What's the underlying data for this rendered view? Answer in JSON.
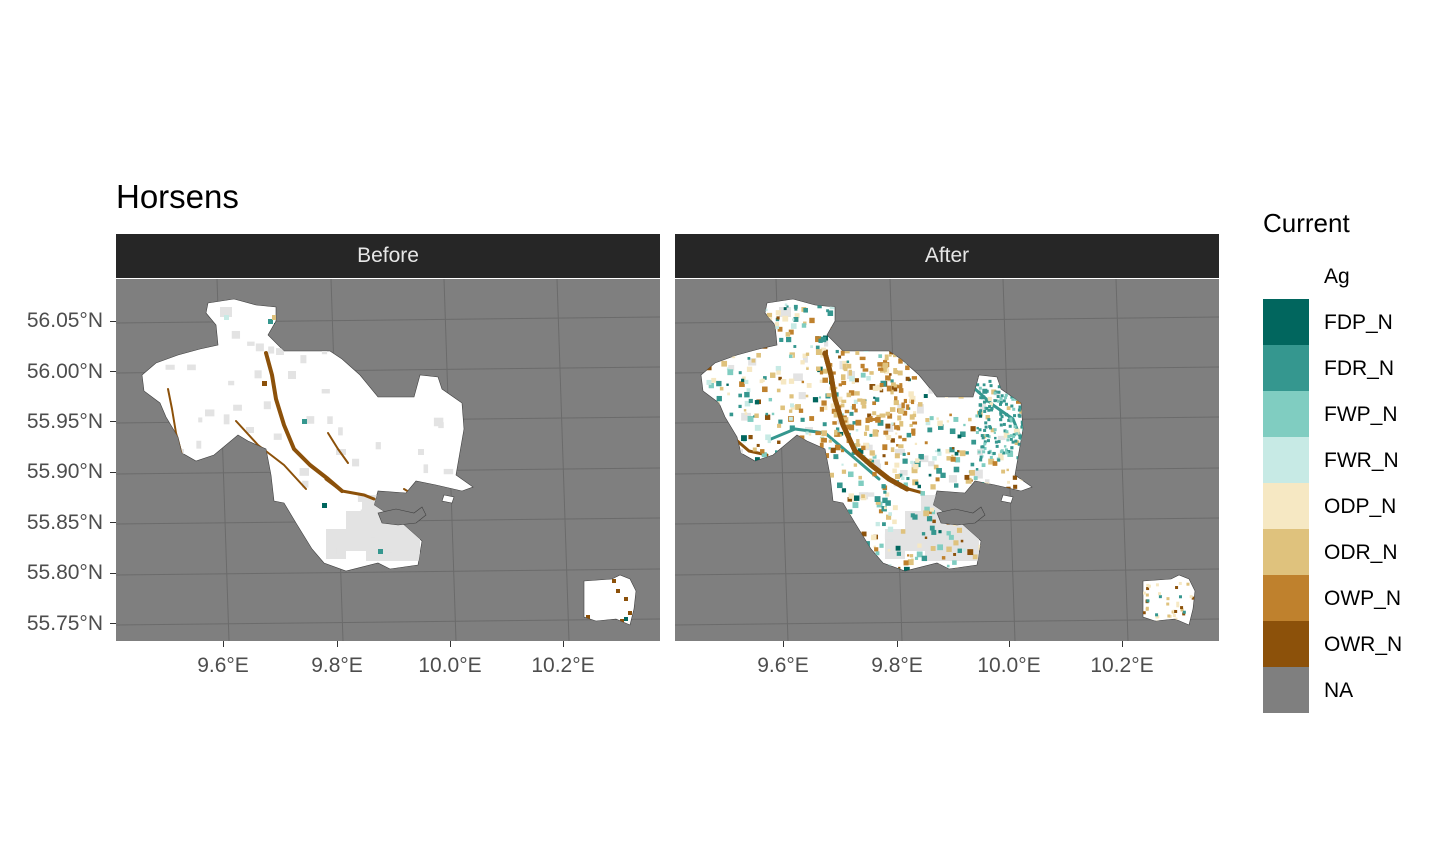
{
  "title": "Horsens",
  "facets": [
    "Before",
    "After"
  ],
  "axes": {
    "y_ticks": [
      "56.05°N",
      "56.00°N",
      "55.95°N",
      "55.90°N",
      "55.85°N",
      "55.80°N",
      "55.75°N"
    ],
    "x_ticks": [
      "9.6°E",
      "9.8°E",
      "10.0°E",
      "10.2°E"
    ]
  },
  "legend": {
    "title": "Current",
    "items": [
      {
        "label": "Ag",
        "color": "#ffffff"
      },
      {
        "label": "FDP_N",
        "color": "#01665e"
      },
      {
        "label": "FDR_N",
        "color": "#35978f"
      },
      {
        "label": "FWP_N",
        "color": "#80cdc1"
      },
      {
        "label": "FWR_N",
        "color": "#c7eae5"
      },
      {
        "label": "ODP_N",
        "color": "#f6e8c3"
      },
      {
        "label": "ODR_N",
        "color": "#dfc27d"
      },
      {
        "label": "OWP_N",
        "color": "#bf812d"
      },
      {
        "label": "OWR_N",
        "color": "#8c510a"
      },
      {
        "label": "NA",
        "color": "#7f7f7f"
      }
    ]
  },
  "colors": {
    "panel_background": "#7f7f7f",
    "strip_background": "#262626",
    "strip_text": "#e6e6e6",
    "graticule": "#6b6b6b",
    "outside_region": "#e3e3e3"
  }
}
